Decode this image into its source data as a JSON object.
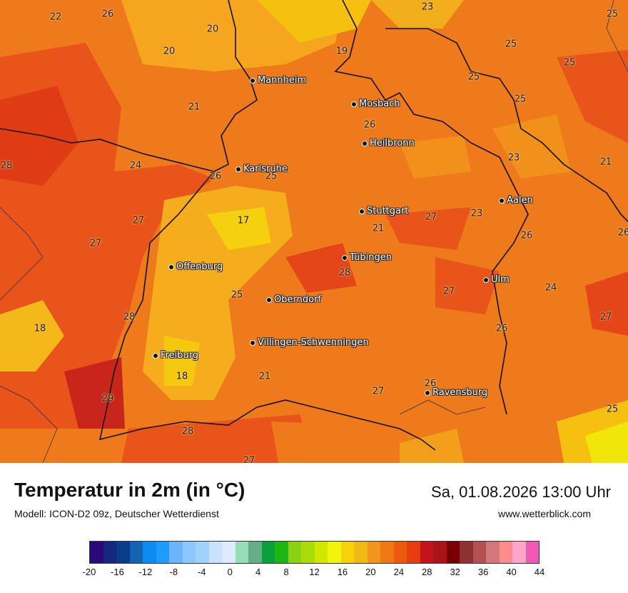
{
  "title": "Temperatur in 2m (in °C)",
  "model": "Modell: ICON-D2 09z, Deutscher Wetterdienst",
  "datetime": "Sa, 01.08.2026 13:00 Uhr",
  "site": "www.wetterblick.com",
  "cities": [
    {
      "name": "Mannheim"
    },
    {
      "name": "Mosbach"
    },
    {
      "name": "Heilbronn"
    },
    {
      "name": "Karlsruhe"
    },
    {
      "name": "Aalen"
    },
    {
      "name": "Stuttgart"
    },
    {
      "name": "Tübingen"
    },
    {
      "name": "Offenburg"
    },
    {
      "name": "Ulm"
    },
    {
      "name": "Oberndorf"
    },
    {
      "name": "Villingen-Schwenningen"
    },
    {
      "name": "Freiburg"
    },
    {
      "name": "Ravensburg"
    }
  ],
  "temperatures": [
    "22",
    "26",
    "20",
    "20",
    "19",
    "23",
    "25",
    "25",
    "25",
    "25",
    "25",
    "21",
    "26",
    "28",
    "24",
    "26",
    "25",
    "23",
    "21",
    "27",
    "17",
    "21",
    "23",
    "27",
    "27",
    "26",
    "26",
    "28",
    "27",
    "24",
    "25",
    "28",
    "18",
    "21",
    "26",
    "27",
    "18",
    "21",
    "26",
    "27",
    "29",
    "28",
    "27",
    "25"
  ],
  "legend": {
    "colors": [
      "#2a0a7a",
      "#15287e",
      "#0a3c8c",
      "#1464b4",
      "#0a8cf0",
      "#1e9bff",
      "#6eb4fa",
      "#8cc8ff",
      "#a0d2ff",
      "#c8e1ff",
      "#dcebff",
      "#96dcb4",
      "#64af87",
      "#0aa03c",
      "#1eb414",
      "#8cd214",
      "#aadc0a",
      "#d2e600",
      "#f0f50a",
      "#f5d20a",
      "#f0b914",
      "#f0961e",
      "#f07814",
      "#eb5a0f",
      "#e63c0f",
      "#c3141e",
      "#aa1419",
      "#780000",
      "#8c3232",
      "#b45050",
      "#d27878",
      "#ff8c8c",
      "#ffa5c8",
      "#f05ab4"
    ],
    "ticks": [
      "-20",
      "-16",
      "-12",
      "-8",
      "-4",
      "0",
      "4",
      "8",
      "12",
      "16",
      "20",
      "24",
      "28",
      "32",
      "36",
      "40",
      "44"
    ]
  }
}
